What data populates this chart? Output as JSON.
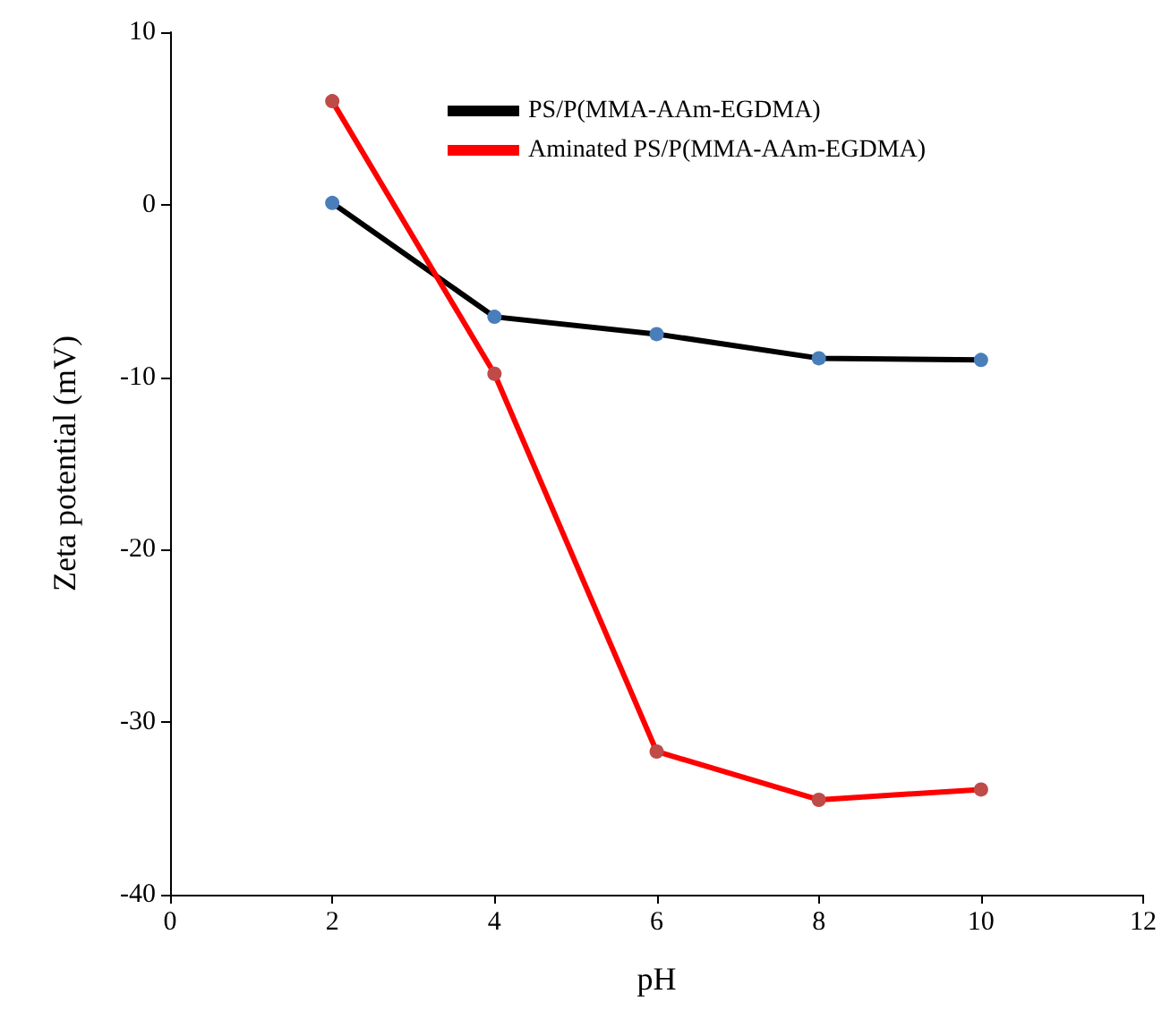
{
  "chart_data": {
    "type": "line",
    "xlabel": "pH",
    "ylabel": "Zeta potential (mV)",
    "x": [
      2,
      4,
      6,
      8,
      10
    ],
    "series": [
      {
        "name": "PS/P(MMA-AAm-EGDMA)",
        "color": "#000000",
        "colors": [
          "#4a7ebb",
          "#4a7ebb",
          "#4a7ebb",
          "#4a7ebb",
          "#4a7ebb"
        ],
        "values": [
          0.1,
          -6.5,
          -7.5,
          -8.9,
          -9.0
        ]
      },
      {
        "name": "Aminated PS/P(MMA-AAm-EGDMA)",
        "color": "#ff0000",
        "colors": [
          "#be4b48",
          "#be4b48",
          "#be4b48",
          "#be4b48",
          "#be4b48"
        ],
        "values": [
          6.0,
          -9.8,
          -31.7,
          -34.5,
          -33.9
        ]
      }
    ],
    "xlim": [
      0,
      12
    ],
    "xticks": [
      0,
      2,
      4,
      6,
      8,
      10,
      12
    ],
    "ylim": [
      -40,
      10
    ],
    "yticks": [
      -40,
      -30,
      -20,
      -10,
      0,
      10
    ],
    "grid": false,
    "legend": "top right",
    "marker": "circle",
    "line_style": "solid"
  }
}
